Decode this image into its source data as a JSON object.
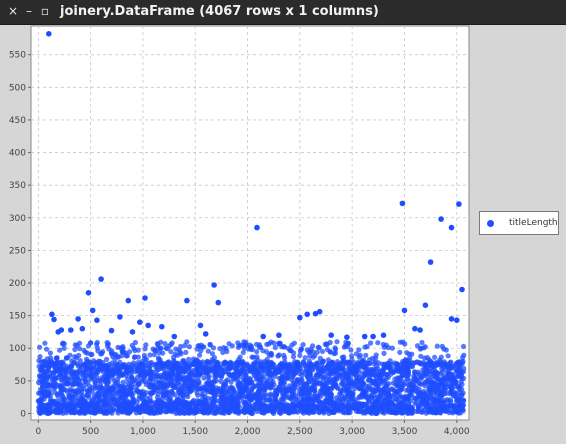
{
  "window": {
    "title": "joinery.DataFrame (4067 rows x 1 columns)",
    "close_glyph": "×",
    "minimize_glyph": "–",
    "maximize_glyph": "▫"
  },
  "legend": {
    "entries": [
      "titleLength"
    ]
  },
  "chart_data": {
    "type": "scatter",
    "title": "",
    "xlabel": "",
    "ylabel": "",
    "xlim": [
      -70,
      4117
    ],
    "ylim": [
      -10,
      594
    ],
    "x_ticks": [
      0,
      500,
      1000,
      1500,
      2000,
      2500,
      3000,
      3500,
      4000
    ],
    "x_tick_labels": [
      "0",
      "500",
      "1,000",
      "1,500",
      "2,000",
      "2,500",
      "3,000",
      "3,500",
      "4,000"
    ],
    "y_ticks": [
      0,
      50,
      100,
      150,
      200,
      250,
      300,
      350,
      400,
      450,
      500,
      550
    ],
    "y_tick_labels": [
      "0",
      "50",
      "100",
      "150",
      "200",
      "250",
      "300",
      "350",
      "400",
      "450",
      "500",
      "550"
    ],
    "grid": true,
    "legend_position": "right",
    "colors": {
      "series": "#1f4dff",
      "plot_bg": "#ffffff",
      "grid": "#c8c8c8"
    },
    "series": [
      {
        "name": "titleLength",
        "x": [
          100,
          130,
          150,
          190,
          220,
          310,
          420,
          480,
          520,
          560,
          600,
          780,
          860,
          970,
          1020,
          1180,
          1420,
          1550,
          1680,
          1720,
          2090,
          2150,
          2500,
          2570,
          2650,
          2690,
          3480,
          3500,
          3700,
          3750,
          3850,
          3950,
          4000,
          4020,
          4050,
          1600,
          1300,
          2800,
          1050,
          3200,
          3300,
          3120,
          900,
          2950,
          700,
          2300,
          380,
          3950,
          3600,
          3650
        ],
        "y": [
          582,
          152,
          144,
          125,
          128,
          128,
          130,
          185,
          158,
          143,
          206,
          148,
          173,
          140,
          177,
          133,
          173,
          135,
          197,
          170,
          285,
          118,
          147,
          152,
          153,
          156,
          322,
          158,
          166,
          232,
          298,
          285,
          143,
          321,
          190,
          122,
          118,
          120,
          135,
          118,
          120,
          118,
          125,
          117,
          127,
          120,
          145,
          145,
          130,
          128
        ]
      }
    ],
    "dense_band": {
      "x_range": [
        0,
        4067
      ],
      "y_range": [
        0,
        110
      ],
      "count": 4017
    }
  }
}
